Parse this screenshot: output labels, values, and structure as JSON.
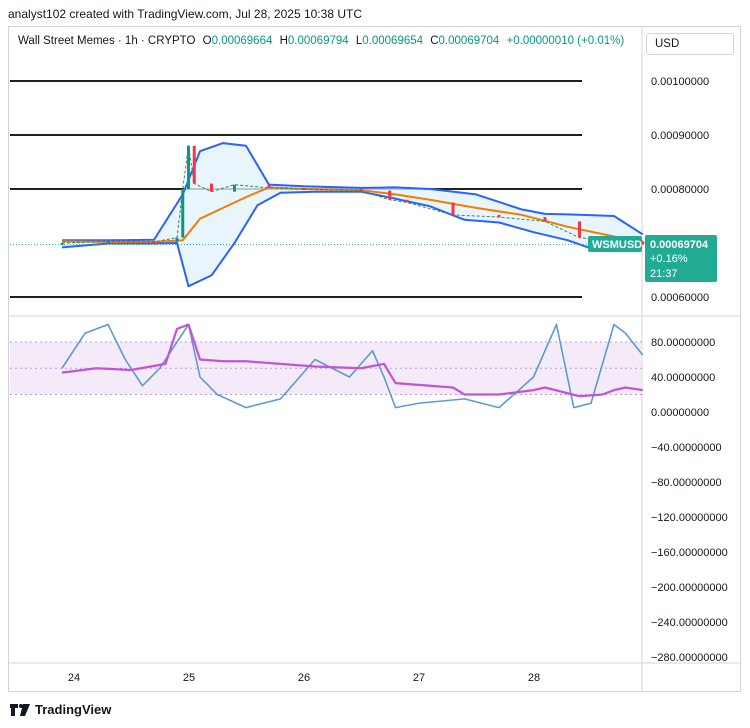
{
  "attribution": "analyst102 created with TradingView.com, Jul 28, 2025 10:38 UTC",
  "legend": {
    "symbol": "Wall Street Memes · 1h · CRYPTO",
    "o_label": "O",
    "o_value": "0.00069664",
    "h_label": "H",
    "h_value": "0.00069794",
    "l_label": "L",
    "l_value": "0.00069654",
    "c_label": "C",
    "c_value": "0.00069704",
    "change": "+0.00000010 (+0.01%)"
  },
  "currency": "USD",
  "price_tag": {
    "symbol": "WSMUSD",
    "price": "0.00069704",
    "change": "+0.16%",
    "countdown": "21:37"
  },
  "logo_text": "TradingView",
  "colors": {
    "up": "#089981",
    "down": "#f23645",
    "bollinger": "#2962ff",
    "ma": "#f57c00",
    "rsi_fast": "#5b9bd5",
    "rsi_slow": "#c056d6",
    "tag": "#22ab94",
    "band_fill": "#e3f2fd"
  },
  "chart_data": [
    {
      "type": "line",
      "name": "price",
      "x_tick_labels": [
        "24",
        "25",
        "26",
        "27",
        "28"
      ],
      "y_tick_labels": [
        "0.00100000",
        "0.00090000",
        "0.00080000",
        "0.00060000"
      ],
      "ylim": [
        0.00055,
        0.00107
      ],
      "horizontal_levels": [
        0.001,
        0.0009,
        0.0008,
        0.0006
      ],
      "last_price": 0.00069704,
      "series": [
        {
          "x": [
            23.4,
            23.8,
            24.2,
            24.4,
            24.45,
            24.5,
            24.55,
            24.7,
            24.9,
            25.2,
            25.5,
            26.0,
            26.25,
            26.4,
            26.8,
            27.2,
            27.6,
            27.9,
            28.2,
            28.45
          ],
          "values": [
            0.0007,
            0.000703,
            0.000702,
            0.00071,
            0.0008,
            0.00088,
            0.00081,
            0.000795,
            0.000808,
            0.000802,
            0.0008,
            0.000797,
            0.00078,
            0.000775,
            0.000752,
            0.000748,
            0.00074,
            0.00071,
            0.000703,
            0.000697
          ]
        },
        {
          "x": [
            23.4,
            23.8,
            24.2,
            24.45,
            24.6,
            24.8,
            25.0,
            25.2,
            25.5,
            26.0,
            26.3,
            26.6,
            27.0,
            27.4,
            27.8,
            28.2,
            28.45
          ],
          "values": [
            0.000703,
            0.000702,
            0.000702,
            0.000705,
            0.000745,
            0.000765,
            0.000785,
            0.000803,
            0.0008,
            0.000798,
            0.00079,
            0.00078,
            0.000765,
            0.000752,
            0.00073,
            0.000712,
            0.000703
          ]
        },
        {
          "x": [
            23.4,
            23.8,
            24.2,
            24.45,
            24.6,
            24.8,
            25.0,
            25.2,
            25.5,
            26.0,
            26.3,
            26.6,
            27.0,
            27.4,
            27.6,
            27.8,
            28.2,
            28.45
          ],
          "values": [
            0.000705,
            0.000705,
            0.000706,
            0.00079,
            0.00087,
            0.000885,
            0.00088,
            0.000808,
            0.000805,
            0.000802,
            0.000803,
            0.0008,
            0.00079,
            0.000762,
            0.000754,
            0.000753,
            0.00075,
            0.000716
          ]
        },
        {
          "x": [
            23.4,
            23.8,
            24.2,
            24.4,
            24.5,
            24.7,
            24.9,
            25.1,
            25.3,
            25.6,
            26.0,
            26.3,
            26.6,
            26.9,
            27.2,
            27.5,
            27.8,
            28.0,
            28.2,
            28.45
          ],
          "values": [
            0.000692,
            0.000699,
            0.000699,
            0.0007,
            0.00062,
            0.00064,
            0.0007,
            0.00077,
            0.000793,
            0.000795,
            0.000795,
            0.000782,
            0.000768,
            0.000743,
            0.000738,
            0.00072,
            0.000705,
            0.00069,
            0.000693,
            0.0007
          ]
        }
      ]
    },
    {
      "type": "line",
      "name": "oscillator",
      "y_tick_labels": [
        "80.00000000",
        "40.00000000",
        "0.00000000",
        "−40.00000000",
        "−80.00000000",
        "−120.00000000",
        "−160.00000000",
        "−200.00000000",
        "−240.00000000",
        "−280.00000000"
      ],
      "ylim": [
        -283,
        115
      ],
      "band": [
        20,
        80
      ],
      "series": [
        {
          "x": [
            23.4,
            23.6,
            23.8,
            23.95,
            24.1,
            24.25,
            24.4,
            24.5,
            24.6,
            24.75,
            25.0,
            25.3,
            25.6,
            25.9,
            26.1,
            26.2,
            26.3,
            26.5,
            26.9,
            27.2,
            27.5,
            27.7,
            27.85,
            28.0,
            28.2,
            28.3,
            28.45
          ],
          "values": [
            50,
            90,
            100,
            60,
            30,
            50,
            80,
            100,
            40,
            20,
            5,
            15,
            60,
            40,
            70,
            40,
            5,
            10,
            15,
            5,
            40,
            100,
            5,
            10,
            100,
            90,
            65
          ]
        },
        {
          "x": [
            23.4,
            23.7,
            24.0,
            24.3,
            24.4,
            24.5,
            24.6,
            24.8,
            25.0,
            25.3,
            25.6,
            26.0,
            26.2,
            26.3,
            26.6,
            26.8,
            26.9,
            27.2,
            27.5,
            27.6,
            27.9,
            28.1,
            28.2,
            28.3,
            28.45
          ],
          "values": [
            45,
            50,
            48,
            55,
            95,
            100,
            60,
            58,
            58,
            55,
            52,
            50,
            55,
            33,
            30,
            28,
            20,
            20,
            25,
            28,
            18,
            20,
            25,
            28,
            25
          ]
        }
      ]
    }
  ]
}
